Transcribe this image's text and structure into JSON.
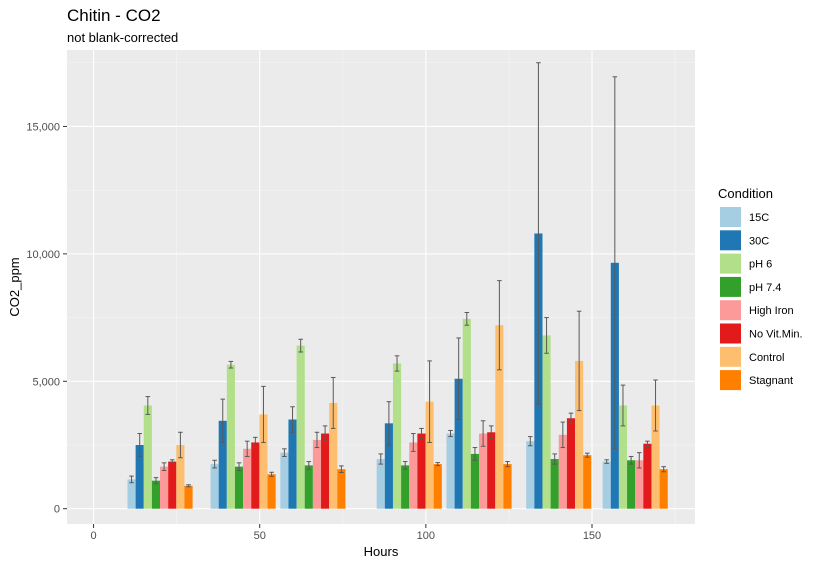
{
  "chart_data": {
    "type": "bar",
    "title": "Chitin - CO2",
    "subtitle": "not blank-corrected",
    "xlabel": "Hours",
    "ylabel": "CO2_ppm",
    "xlim": [
      -8,
      181
    ],
    "ylim": [
      -600,
      18000
    ],
    "xticks": [
      0,
      50,
      100,
      150
    ],
    "xtick_labels": [
      "0",
      "50",
      "100",
      "150"
    ],
    "yticks": [
      0,
      5000,
      10000,
      15000
    ],
    "ytick_labels": [
      "0",
      "5,000",
      "10,000",
      "15,000"
    ],
    "grid": true,
    "legend": {
      "title": "Condition",
      "position": "right"
    },
    "x": [
      20,
      45,
      66,
      95,
      116,
      140,
      163
    ],
    "series": [
      {
        "name": "15C",
        "color": "#a6cee3",
        "values": [
          1150,
          1750,
          2200,
          1950,
          2950,
          2650,
          1850
        ],
        "errors": [
          130,
          150,
          150,
          200,
          120,
          180,
          70
        ]
      },
      {
        "name": "30C",
        "color": "#1f78b4",
        "values": [
          2500,
          3450,
          3500,
          3350,
          5100,
          10800,
          9650
        ],
        "errors": [
          450,
          850,
          500,
          850,
          1600,
          6700,
          7300
        ]
      },
      {
        "name": "pH 6",
        "color": "#b2df8a",
        "values": [
          4050,
          5650,
          6400,
          5700,
          7450,
          6800,
          4050
        ],
        "errors": [
          350,
          130,
          250,
          300,
          250,
          700,
          800
        ]
      },
      {
        "name": "pH 7.4",
        "color": "#33a02c",
        "values": [
          1100,
          1650,
          1700,
          1700,
          2150,
          1950,
          1900
        ],
        "errors": [
          120,
          150,
          150,
          150,
          250,
          200,
          150
        ]
      },
      {
        "name": "High Iron",
        "color": "#fb9a99",
        "values": [
          1650,
          2350,
          2700,
          2600,
          2950,
          2900,
          1900
        ],
        "errors": [
          150,
          300,
          300,
          350,
          500,
          500,
          300
        ]
      },
      {
        "name": "No Vit.Min.",
        "color": "#e31a1c",
        "values": [
          1850,
          2600,
          2950,
          2950,
          3000,
          3550,
          2550
        ],
        "errors": [
          70,
          200,
          300,
          200,
          250,
          200,
          100
        ]
      },
      {
        "name": "Control",
        "color": "#fdbf6f",
        "values": [
          2500,
          3700,
          4150,
          4200,
          7200,
          5800,
          4050
        ],
        "errors": [
          500,
          1100,
          1000,
          1600,
          1750,
          1950,
          1000
        ]
      },
      {
        "name": "Stagnant",
        "color": "#ff7f00",
        "values": [
          900,
          1350,
          1550,
          1750,
          1750,
          2100,
          1550
        ],
        "errors": [
          40,
          80,
          130,
          60,
          100,
          80,
          100
        ]
      }
    ]
  }
}
